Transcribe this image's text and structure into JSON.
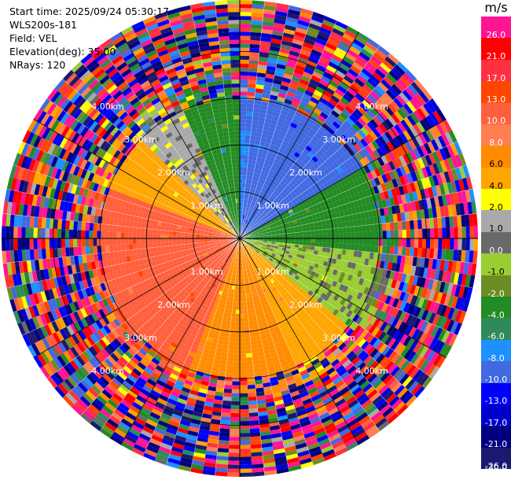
{
  "info": {
    "start_time": "Start time: 2025/09/24 05:30:17",
    "station": "WLS200s-181",
    "field": "Field: VEL",
    "elevation": "Elevation(deg): 35.00",
    "nrays": "NRays: 120"
  },
  "chart_data": {
    "type": "heatmap",
    "projection": "polar-ppi",
    "field": "VEL",
    "unit": "m/s",
    "elevation_deg": 35.0,
    "nrays": 120,
    "range_rings_km": [
      1.0,
      2.0,
      3.0,
      4.0
    ],
    "range_ring_labels": [
      "1.00km",
      "2.00km",
      "3.00km",
      "4.00km"
    ],
    "max_range_km": 5.1,
    "clean_range_km": 3.0,
    "colorbar": {
      "unit_label": "m/s",
      "ticks": [
        "26.0",
        "21.0",
        "17.0",
        "13.0",
        "10.0",
        "8.0",
        "6.0",
        "4.0",
        "2.0",
        "1.0",
        "0.0",
        "-1.0",
        "-2.0",
        "-4.0",
        "-6.0",
        "-8.0",
        "-10.0",
        "-13.0",
        "-17.0",
        "-21.0",
        "-26.0",
        "-30.0"
      ],
      "colors": [
        "#ff1493",
        "#ff0000",
        "#ff3040",
        "#ff4500",
        "#ff5f3c",
        "#ff7f50",
        "#ff8c00",
        "#ffa500",
        "#ffff00",
        "#a9a9a9",
        "#696969",
        "#9acd32",
        "#6b8e23",
        "#228b22",
        "#2e8b57",
        "#1e90ff",
        "#4169e1",
        "#0000ff",
        "#0000cd",
        "#000080",
        "#191970"
      ]
    },
    "velocity_sectors": [
      {
        "az_from": 0,
        "az_to": 5,
        "value": -10.0
      },
      {
        "az_from": 5,
        "az_to": 60,
        "value": -11.5
      },
      {
        "az_from": 60,
        "az_to": 95,
        "value": -5.0
      },
      {
        "az_from": 95,
        "az_to": 130,
        "value": -1.5
      },
      {
        "az_from": 130,
        "az_to": 155,
        "value": 3.0
      },
      {
        "az_from": 155,
        "az_to": 200,
        "value": 5.0
      },
      {
        "az_from": 200,
        "az_to": 290,
        "value": 9.0
      },
      {
        "az_from": 290,
        "az_to": 315,
        "value": 3.0
      },
      {
        "az_from": 315,
        "az_to": 335,
        "value": 0.5
      },
      {
        "az_from": 335,
        "az_to": 360,
        "value": -5.0
      }
    ]
  }
}
